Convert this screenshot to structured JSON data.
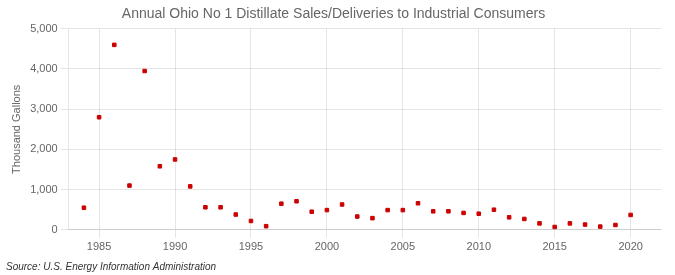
{
  "chart_data": {
    "type": "scatter",
    "title": "Annual Ohio No 1 Distillate Sales/Deliveries to Industrial Consumers",
    "ylabel": "Thousand Gallons",
    "source": "Source: U.S. Energy Information Administration",
    "x": [
      1984,
      1985,
      1986,
      1987,
      1988,
      1989,
      1990,
      1991,
      1992,
      1993,
      1994,
      1995,
      1996,
      1997,
      1998,
      1999,
      2000,
      2001,
      2002,
      2003,
      2004,
      2005,
      2006,
      2007,
      2008,
      2009,
      2010,
      2011,
      2012,
      2013,
      2014,
      2015,
      2016,
      2017,
      2018,
      2019,
      2020
    ],
    "values": [
      550,
      2800,
      4600,
      1100,
      3950,
      1580,
      1750,
      1080,
      560,
      560,
      380,
      220,
      90,
      650,
      710,
      450,
      490,
      630,
      330,
      290,
      490,
      490,
      660,
      460,
      460,
      420,
      400,
      500,
      310,
      270,
      160,
      70,
      160,
      130,
      80,
      120,
      370
    ],
    "color": "#cc0000",
    "marker": "square",
    "xlim": [
      1983,
      2022
    ],
    "xticks": [
      1985,
      1990,
      1995,
      2000,
      2005,
      2010,
      2015,
      2020
    ],
    "ylim": [
      0,
      5000
    ],
    "yticks": [
      0,
      {
        "value": 1000,
        "label": "1,000"
      },
      {
        "value": 2000,
        "label": "2,000"
      },
      {
        "value": 3000,
        "label": "3,000"
      },
      {
        "value": 4000,
        "label": "4,000"
      },
      {
        "value": 5000,
        "label": "5,000"
      }
    ],
    "grid": true
  }
}
